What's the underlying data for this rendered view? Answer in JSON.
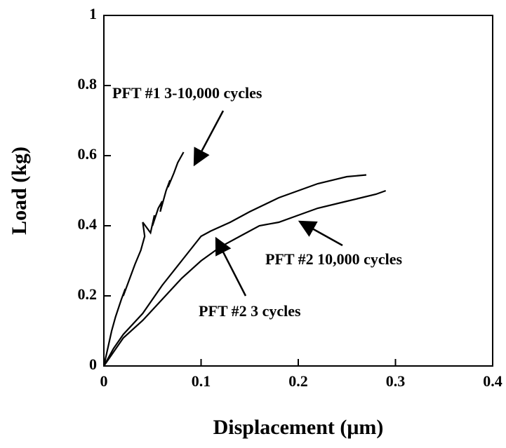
{
  "chart_data": {
    "type": "line",
    "xlabel": "Displacement (μm)",
    "ylabel": "Load (kg)",
    "xlim": [
      0,
      0.4
    ],
    "xticks": [
      0,
      0.1,
      0.2,
      0.3,
      0.4
    ],
    "ylim": [
      0,
      1
    ],
    "yticks": [
      0,
      0.2,
      0.4,
      0.6,
      0.8,
      1
    ],
    "grid": false,
    "series": [
      {
        "name": "PFT #1 3-10,000 cycles",
        "color": "#000000",
        "x": [
          0,
          0.004,
          0.008,
          0.012,
          0.018,
          0.022,
          0.02,
          0.028,
          0.032,
          0.038,
          0.042,
          0.04,
          0.048,
          0.052,
          0.05,
          0.056,
          0.06,
          0.058,
          0.064,
          0.068,
          0.066,
          0.072,
          0.076,
          0.08,
          0.082
        ],
        "values": [
          0,
          0.05,
          0.1,
          0.14,
          0.19,
          0.22,
          0.2,
          0.26,
          0.29,
          0.33,
          0.37,
          0.41,
          0.38,
          0.43,
          0.4,
          0.45,
          0.47,
          0.44,
          0.5,
          0.53,
          0.51,
          0.55,
          0.58,
          0.6,
          0.61
        ]
      },
      {
        "name": "PFT #2 3 cycles",
        "color": "#000000",
        "x": [
          0,
          0.01,
          0.02,
          0.04,
          0.06,
          0.08,
          0.1,
          0.11,
          0.13,
          0.15,
          0.18,
          0.2,
          0.22,
          0.25,
          0.27
        ],
        "values": [
          0,
          0.05,
          0.09,
          0.15,
          0.23,
          0.3,
          0.37,
          0.385,
          0.41,
          0.44,
          0.48,
          0.5,
          0.52,
          0.54,
          0.545
        ]
      },
      {
        "name": "PFT #2 10,000 cycles",
        "color": "#000000",
        "x": [
          0,
          0.01,
          0.02,
          0.04,
          0.06,
          0.08,
          0.1,
          0.12,
          0.14,
          0.16,
          0.18,
          0.2,
          0.22,
          0.25,
          0.28,
          0.29
        ],
        "values": [
          0,
          0.04,
          0.08,
          0.13,
          0.19,
          0.25,
          0.3,
          0.34,
          0.37,
          0.4,
          0.41,
          0.43,
          0.45,
          0.47,
          0.49,
          0.5
        ]
      }
    ]
  }
}
